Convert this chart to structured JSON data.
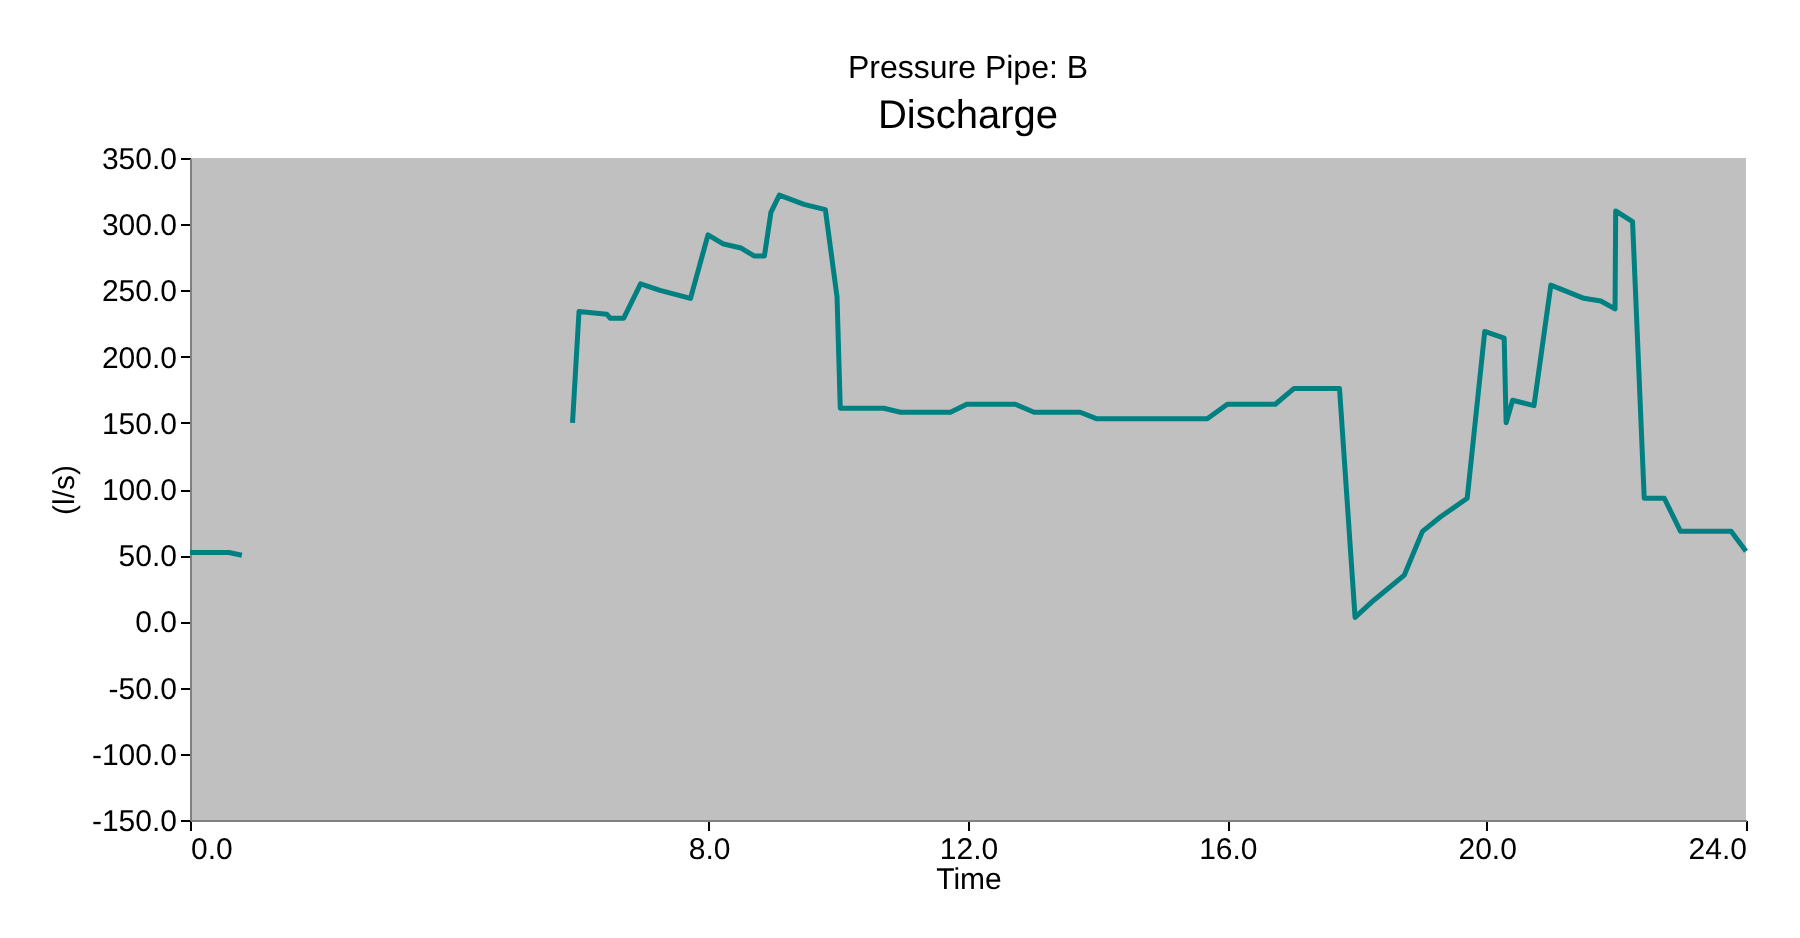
{
  "chart_data": {
    "type": "line",
    "title": "Pressure Pipe: B",
    "subtitle": "Discharge",
    "xlabel": "Time",
    "ylabel": "(l/s)",
    "x": [
      0,
      0.6,
      0.8,
      3.0,
      5.9,
      6.0,
      6.43,
      6.48,
      6.69,
      6.95,
      7.25,
      7.72,
      7.99,
      8.23,
      8.5,
      8.7,
      8.86,
      8.96,
      9.09,
      9.47,
      9.8,
      9.98,
      10.03,
      10.7,
      10.96,
      11.73,
      11.98,
      12.73,
      13.02,
      13.73,
      13.99,
      15.69,
      16.0,
      16.74,
      17.03,
      17.73,
      17.97,
      18.26,
      18.73,
      19.01,
      19.29,
      19.7,
      19.97,
      20.27,
      20.3,
      20.4,
      20.73,
      20.99,
      21.5,
      21.76,
      21.98,
      21.99,
      22.25,
      22.43,
      22.74,
      22.99,
      23.77,
      24.0
    ],
    "series": [
      {
        "color": "#008080",
        "values": [
          52,
          52,
          50,
          null,
          150,
          234,
          232,
          229,
          229,
          255,
          250,
          244,
          292,
          285,
          282,
          276,
          276,
          309,
          322,
          315,
          311,
          245,
          161,
          161,
          158,
          158,
          164,
          164,
          158,
          158,
          153,
          153,
          164,
          164,
          176,
          176,
          3,
          16,
          35,
          68,
          79,
          93,
          219,
          214,
          150,
          167,
          163,
          254,
          244,
          242,
          236,
          310,
          302,
          93,
          93,
          68,
          68,
          53
        ]
      }
    ],
    "xlim": [
      0,
      24
    ],
    "xticks": [
      {
        "value": 0,
        "label": "0.0"
      },
      {
        "value": 8,
        "label": "8.0"
      },
      {
        "value": 12,
        "label": "12.0"
      },
      {
        "value": 16,
        "label": "16.0"
      },
      {
        "value": 20,
        "label": "20.0"
      },
      {
        "value": 24,
        "label": "24.0"
      }
    ],
    "ylim": [
      -150,
      350
    ],
    "yticks": [
      {
        "value": -150,
        "label": "-150.0"
      },
      {
        "value": -100,
        "label": "-100.0"
      },
      {
        "value": -50,
        "label": "-50.0"
      },
      {
        "value": 0,
        "label": "0.0"
      },
      {
        "value": 50,
        "label": "50.0"
      },
      {
        "value": 100,
        "label": "100.0"
      },
      {
        "value": 150,
        "label": "150.0"
      },
      {
        "value": 200,
        "label": "200.0"
      },
      {
        "value": 250,
        "label": "250.0"
      },
      {
        "value": 300,
        "label": "300.0"
      },
      {
        "value": 350,
        "label": "350.0"
      }
    ],
    "grid": false,
    "legend": false,
    "marker": "none",
    "line_style": "solid"
  }
}
